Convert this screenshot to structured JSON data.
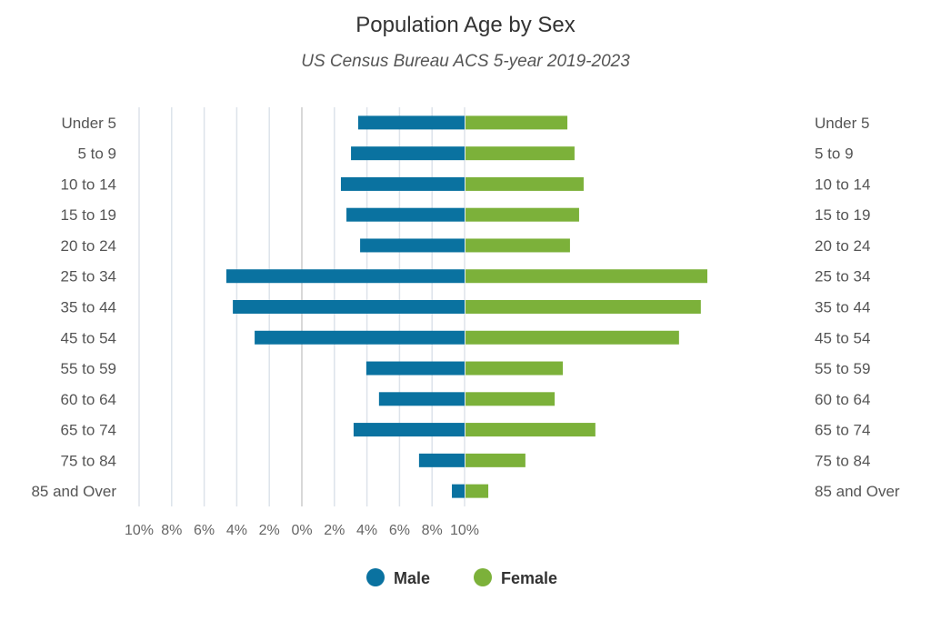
{
  "chart_data": {
    "type": "bar",
    "orientation": "horizontal-population-pyramid",
    "title": "Population Age by Sex",
    "subtitle": "US Census Bureau ACS 5-year 2019-2023",
    "categories": [
      "Under 5",
      "5 to 9",
      "10 to 14",
      "15 to 19",
      "20 to 24",
      "25 to 34",
      "35 to 44",
      "45 to 54",
      "55 to 59",
      "60 to 64",
      "65 to 74",
      "75 to 84",
      "85 and Over"
    ],
    "series": [
      {
        "name": "Male",
        "color": "#0a72a0",
        "side": "left",
        "values": [
          3.27,
          3.49,
          3.8,
          3.63,
          3.21,
          7.32,
          7.12,
          6.45,
          3.02,
          2.63,
          3.41,
          1.4,
          0.39
        ]
      },
      {
        "name": "Female",
        "color": "#7cb13a",
        "side": "right",
        "values": [
          3.13,
          3.35,
          3.63,
          3.49,
          3.21,
          7.43,
          7.23,
          6.56,
          2.99,
          2.74,
          3.99,
          1.84,
          0.7
        ]
      }
    ],
    "xlim": [
      -10,
      10
    ],
    "x_ticks": [
      "10%",
      "8%",
      "6%",
      "4%",
      "2%",
      "0%",
      "2%",
      "4%",
      "6%",
      "8%",
      "10%"
    ],
    "grid": true,
    "legend": "bottom"
  }
}
